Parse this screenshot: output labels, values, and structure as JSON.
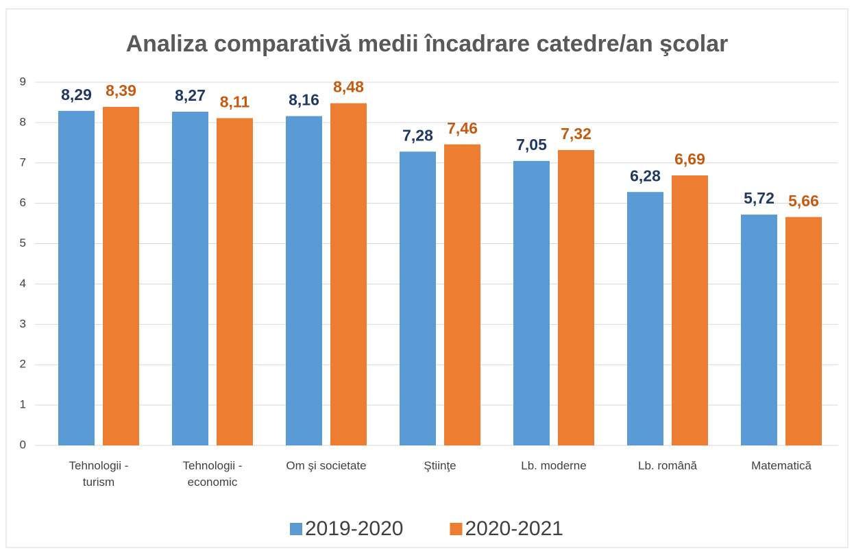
{
  "chart_data": {
    "type": "bar",
    "title": "Analiza comparativă medii încadrare catedre/an şcolar",
    "categories": [
      "Tehnologii - turism",
      "Tehnologii - economic",
      "Om şi societate",
      "Ştiinţe",
      "Lb. moderne",
      "Lb. română",
      "Matematică"
    ],
    "series": [
      {
        "name": "2019-2020",
        "color": "#5b9bd5",
        "label_color": "#1f3864",
        "values": [
          8.29,
          8.27,
          8.16,
          7.28,
          7.05,
          6.28,
          5.72
        ],
        "value_labels": [
          "8,29",
          "8,27",
          "8,16",
          "7,28",
          "7,05",
          "6,28",
          "5,72"
        ]
      },
      {
        "name": "2020-2021",
        "color": "#ed7d31",
        "label_color": "#c55a11",
        "values": [
          8.39,
          8.11,
          8.48,
          7.46,
          7.32,
          6.69,
          5.66
        ],
        "value_labels": [
          "8,39",
          "8,11",
          "8,48",
          "7,46",
          "7,32",
          "6,69",
          "5,66"
        ]
      }
    ],
    "ylim": [
      0,
      9
    ],
    "yticks": [
      0,
      1,
      2,
      3,
      4,
      5,
      6,
      7,
      8,
      9
    ],
    "grid": true,
    "legend": "bottom"
  }
}
